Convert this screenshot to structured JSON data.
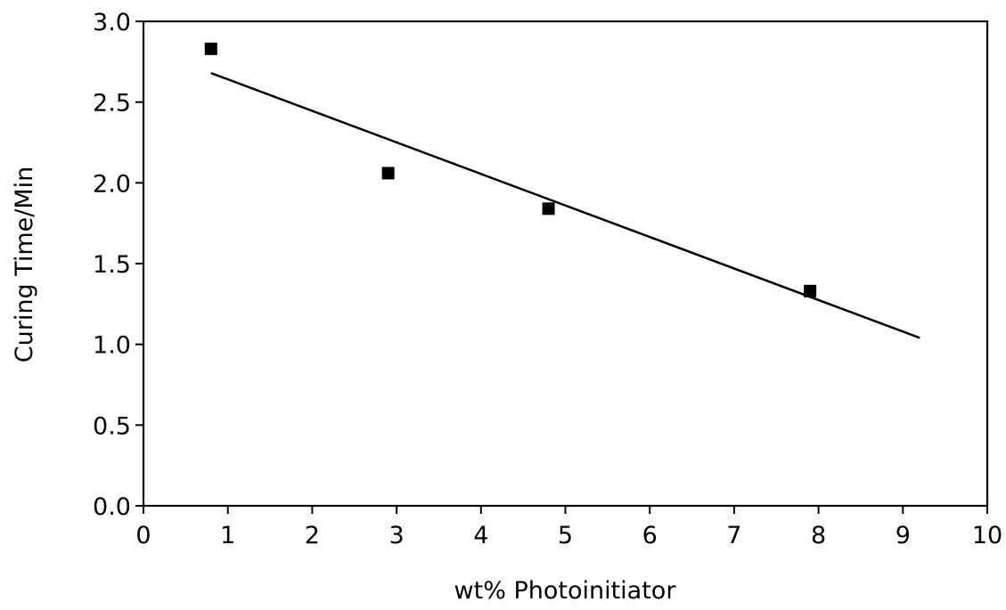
{
  "chart_data": {
    "type": "scatter",
    "title": "",
    "xlabel": "wt% Photoinitiator",
    "ylabel": "Curing Time/Min",
    "xlim": [
      0,
      10
    ],
    "ylim": [
      0.0,
      3.0
    ],
    "x_ticks": [
      "0",
      "1",
      "2",
      "3",
      "4",
      "5",
      "6",
      "7",
      "8",
      "9",
      "10"
    ],
    "y_ticks": [
      "0.0",
      "0.5",
      "1.0",
      "1.5",
      "2.0",
      "2.5",
      "3.0"
    ],
    "grid": false,
    "legend": "none",
    "series": [
      {
        "marker": "square",
        "color": "#000000",
        "points": [
          {
            "x": 0.8,
            "y": 2.83
          },
          {
            "x": 2.9,
            "y": 2.06
          },
          {
            "x": 4.8,
            "y": 1.84
          },
          {
            "x": 7.9,
            "y": 1.33
          }
        ]
      }
    ],
    "fit_line": {
      "color": "#000000",
      "points": [
        {
          "x": 0.8,
          "y": 2.68
        },
        {
          "x": 9.2,
          "y": 1.04
        }
      ]
    }
  }
}
